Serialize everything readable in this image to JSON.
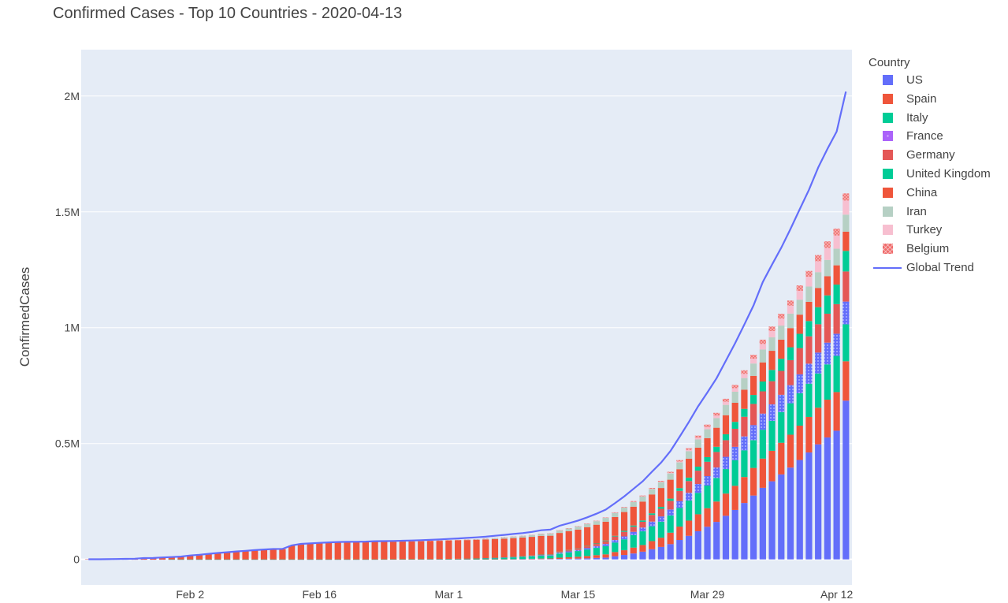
{
  "chart_data": {
    "type": "bar",
    "title": "Confirmed Cases - Top 10 Countries - 2020-04-13",
    "ylabel": "ConfirmedCases",
    "xlabel": "",
    "stacked": true,
    "grid": true,
    "legend_title": "Country",
    "legend_position": "right",
    "x_ticks": [
      "Feb 2",
      "Feb 16",
      "Mar 1",
      "Mar 15",
      "Mar 29",
      "Apr 12"
    ],
    "y_ticks": [
      "0",
      "0.5M",
      "1M",
      "1.5M",
      "2M"
    ],
    "ylim": [
      -110000,
      2200000
    ],
    "dates": [
      "Jan 22",
      "Jan 23",
      "Jan 24",
      "Jan 25",
      "Jan 26",
      "Jan 27",
      "Jan 28",
      "Jan 29",
      "Jan 30",
      "Jan 31",
      "Feb 1",
      "Feb 2",
      "Feb 3",
      "Feb 4",
      "Feb 5",
      "Feb 6",
      "Feb 7",
      "Feb 8",
      "Feb 9",
      "Feb 10",
      "Feb 11",
      "Feb 12",
      "Feb 13",
      "Feb 14",
      "Feb 15",
      "Feb 16",
      "Feb 17",
      "Feb 18",
      "Feb 19",
      "Feb 20",
      "Feb 21",
      "Feb 22",
      "Feb 23",
      "Feb 24",
      "Feb 25",
      "Feb 26",
      "Feb 27",
      "Feb 28",
      "Feb 29",
      "Mar 1",
      "Mar 2",
      "Mar 3",
      "Mar 4",
      "Mar 5",
      "Mar 6",
      "Mar 7",
      "Mar 8",
      "Mar 9",
      "Mar 10",
      "Mar 11",
      "Mar 12",
      "Mar 13",
      "Mar 14",
      "Mar 15",
      "Mar 16",
      "Mar 17",
      "Mar 18",
      "Mar 19",
      "Mar 20",
      "Mar 21",
      "Mar 22",
      "Mar 23",
      "Mar 24",
      "Mar 25",
      "Mar 26",
      "Mar 27",
      "Mar 28",
      "Mar 29",
      "Mar 30",
      "Mar 31",
      "Apr 1",
      "Apr 2",
      "Apr 3",
      "Apr 4",
      "Apr 5",
      "Apr 6",
      "Apr 7",
      "Apr 8",
      "Apr 9",
      "Apr 10",
      "Apr 11",
      "Apr 12",
      "Apr 13"
    ],
    "series": [
      {
        "name": "US",
        "color": "#636efa",
        "pattern": "solid",
        "values": [
          1,
          1,
          2,
          2,
          5,
          5,
          5,
          5,
          5,
          7,
          8,
          8,
          11,
          11,
          11,
          12,
          12,
          12,
          12,
          12,
          13,
          13,
          15,
          15,
          15,
          15,
          15,
          15,
          15,
          15,
          15,
          15,
          15,
          51,
          51,
          57,
          58,
          60,
          68,
          74,
          98,
          118,
          149,
          217,
          262,
          402,
          518,
          583,
          959,
          1281,
          1663,
          2179,
          2727,
          3499,
          4632,
          6421,
          7786,
          13680,
          19101,
          25493,
          33276,
          43847,
          53740,
          65778,
          83836,
          101657,
          121478,
          140886,
          161807,
          188172,
          213372,
          243453,
          275586,
          308850,
          337072,
          366667,
          396223,
          429052,
          461437,
          496535,
          526396,
          555313,
          685000
        ]
      },
      {
        "name": "Spain",
        "color": "#ef553b",
        "pattern": "solid",
        "values": [
          0,
          0,
          0,
          0,
          0,
          0,
          0,
          0,
          0,
          0,
          1,
          1,
          1,
          1,
          1,
          1,
          1,
          1,
          2,
          2,
          2,
          2,
          2,
          2,
          2,
          2,
          2,
          2,
          2,
          2,
          2,
          2,
          2,
          2,
          6,
          13,
          15,
          32,
          45,
          84,
          120,
          165,
          222,
          259,
          400,
          500,
          673,
          1073,
          1695,
          2277,
          2277,
          5232,
          6391,
          7798,
          9942,
          11748,
          13910,
          17963,
          20410,
          25374,
          28768,
          35136,
          39885,
          49515,
          57786,
          65719,
          73235,
          80110,
          87956,
          95923,
          104118,
          112065,
          119199,
          126168,
          131646,
          136675,
          141942,
          148220,
          153222,
          158273,
          163027,
          166831,
          170099
        ]
      },
      {
        "name": "Italy",
        "color": "#00cc96",
        "pattern": "solid",
        "values": [
          0,
          0,
          0,
          0,
          0,
          0,
          0,
          0,
          0,
          2,
          2,
          2,
          2,
          2,
          2,
          2,
          3,
          3,
          3,
          3,
          3,
          3,
          3,
          3,
          3,
          3,
          3,
          3,
          3,
          3,
          20,
          62,
          155,
          229,
          322,
          453,
          655,
          888,
          1128,
          1694,
          2036,
          2502,
          3089,
          3858,
          4636,
          5883,
          7375,
          9172,
          10149,
          12462,
          12462,
          17660,
          21157,
          24747,
          27980,
          31506,
          35713,
          41035,
          47021,
          53578,
          59138,
          63927,
          69176,
          74386,
          80589,
          86498,
          92472,
          97689,
          101739,
          105792,
          110574,
          115242,
          119827,
          124632,
          128948,
          132547,
          135586,
          139422,
          143626,
          147577,
          152271,
          156363,
          159516
        ]
      },
      {
        "name": "France",
        "color": "#ab63fa",
        "pattern": "dotted",
        "values": [
          0,
          0,
          2,
          3,
          3,
          3,
          4,
          5,
          5,
          5,
          6,
          6,
          6,
          6,
          6,
          6,
          6,
          11,
          11,
          11,
          11,
          11,
          11,
          11,
          12,
          12,
          12,
          12,
          12,
          12,
          12,
          12,
          12,
          12,
          14,
          18,
          38,
          57,
          100,
          130,
          191,
          204,
          288,
          380,
          656,
          957,
          1134,
          1217,
          1792,
          2293,
          2293,
          3681,
          4496,
          4532,
          6683,
          7715,
          9124,
          10970,
          12758,
          14463,
          16243,
          20123,
          22622,
          25600,
          29551,
          33402,
          38105,
          40708,
          45170,
          52827,
          57749,
          59929,
          65202,
          69500,
          71412,
          74390,
          78167,
          82048,
          86334,
          90276,
          93790,
          95403,
          98076
        ]
      },
      {
        "name": "Germany",
        "color": "#e45756",
        "pattern": "solid",
        "values": [
          0,
          0,
          0,
          0,
          0,
          1,
          4,
          4,
          4,
          5,
          8,
          10,
          12,
          12,
          12,
          12,
          13,
          13,
          14,
          14,
          16,
          16,
          16,
          16,
          16,
          16,
          16,
          16,
          16,
          16,
          16,
          16,
          16,
          16,
          17,
          27,
          46,
          48,
          79,
          130,
          159,
          196,
          262,
          482,
          670,
          799,
          1040,
          1176,
          1457,
          1908,
          2078,
          3675,
          4585,
          5795,
          7272,
          9257,
          12327,
          15320,
          19848,
          22213,
          24873,
          29056,
          32986,
          37323,
          43938,
          50871,
          57695,
          62095,
          66885,
          71808,
          77872,
          84794,
          91159,
          96092,
          100123,
          103374,
          107663,
          113296,
          118181,
          122171,
          124908,
          127854,
          130072
        ]
      },
      {
        "name": "United Kingdom",
        "color": "#00cc96",
        "pattern": "solid",
        "values": [
          0,
          0,
          0,
          0,
          0,
          0,
          0,
          0,
          0,
          2,
          2,
          2,
          2,
          2,
          2,
          2,
          3,
          3,
          3,
          8,
          8,
          9,
          9,
          9,
          9,
          9,
          9,
          9,
          9,
          9,
          9,
          9,
          9,
          9,
          13,
          13,
          15,
          20,
          23,
          36,
          40,
          51,
          86,
          116,
          164,
          207,
          274,
          322,
          384,
          459,
          459,
          802,
          1144,
          1145,
          1551,
          1960,
          2642,
          2716,
          4014,
          5067,
          5745,
          6726,
          8164,
          9640,
          11812,
          14745,
          17312,
          19780,
          22453,
          25481,
          29865,
          34173,
          38689,
          42477,
          48436,
          52279,
          55949,
          61474,
          65872,
          73758,
          78991,
          84279,
          88621
        ]
      },
      {
        "name": "China",
        "color": "#ef553b",
        "pattern": "solid",
        "values": [
          548,
          643,
          920,
          1406,
          2075,
          2877,
          5509,
          6087,
          8141,
          9802,
          11891,
          16630,
          19716,
          23707,
          27440,
          30587,
          34110,
          36814,
          39829,
          42354,
          44386,
          44759,
          59895,
          66358,
          68413,
          70513,
          72434,
          74211,
          74619,
          75077,
          75550,
          77001,
          77022,
          77241,
          77754,
          78166,
          78600,
          78928,
          79356,
          79932,
          80136,
          80261,
          80386,
          80537,
          80690,
          80770,
          80823,
          80860,
          80887,
          80921,
          80932,
          80945,
          80977,
          81003,
          81033,
          81058,
          81102,
          81156,
          81250,
          81305,
          81435,
          81498,
          81591,
          81661,
          81782,
          81897,
          81999,
          82122,
          82198,
          82279,
          82361,
          82432,
          82511,
          82543,
          82602,
          82665,
          82718,
          82809,
          82883,
          82941,
          83014,
          83134,
          83213
        ]
      },
      {
        "name": "Iran",
        "color": "#b6d0c4",
        "pattern": "solid",
        "values": [
          0,
          0,
          0,
          0,
          0,
          0,
          0,
          0,
          0,
          0,
          0,
          0,
          0,
          0,
          0,
          0,
          0,
          0,
          0,
          0,
          0,
          0,
          0,
          0,
          0,
          0,
          0,
          0,
          2,
          5,
          18,
          28,
          43,
          61,
          95,
          139,
          245,
          388,
          593,
          978,
          1501,
          2336,
          2922,
          3513,
          4747,
          5823,
          6566,
          7161,
          8042,
          9000,
          10075,
          11364,
          12729,
          13938,
          14991,
          16169,
          17361,
          18407,
          19644,
          20610,
          21638,
          23049,
          24811,
          27017,
          29406,
          32332,
          35408,
          38309,
          41495,
          44605,
          47593,
          50468,
          53183,
          55743,
          58226,
          60500,
          62589,
          64586,
          66220,
          68192,
          70029,
          71686,
          73303
        ]
      },
      {
        "name": "Turkey",
        "color": "#f7bfd0",
        "pattern": "solid",
        "values": [
          0,
          0,
          0,
          0,
          0,
          0,
          0,
          0,
          0,
          0,
          0,
          0,
          0,
          0,
          0,
          0,
          0,
          0,
          0,
          0,
          0,
          0,
          0,
          0,
          0,
          0,
          0,
          0,
          0,
          0,
          0,
          0,
          0,
          0,
          0,
          0,
          0,
          0,
          0,
          0,
          0,
          0,
          0,
          0,
          0,
          0,
          0,
          0,
          0,
          1,
          1,
          5,
          5,
          6,
          18,
          47,
          98,
          192,
          359,
          670,
          1236,
          1529,
          1872,
          2433,
          3629,
          5698,
          7402,
          9217,
          10827,
          13531,
          15679,
          18135,
          20921,
          23934,
          27069,
          30217,
          34109,
          38226,
          42282,
          47029,
          52167,
          56956,
          61049
        ]
      },
      {
        "name": "Belgium",
        "color": "#ef6b6b",
        "pattern": "cross",
        "values": [
          0,
          0,
          0,
          0,
          0,
          0,
          0,
          0,
          0,
          0,
          0,
          0,
          1,
          1,
          1,
          1,
          1,
          1,
          1,
          1,
          1,
          1,
          1,
          1,
          1,
          1,
          1,
          1,
          1,
          1,
          1,
          1,
          1,
          1,
          1,
          1,
          1,
          1,
          1,
          2,
          8,
          13,
          23,
          50,
          109,
          169,
          200,
          239,
          267,
          314,
          314,
          559,
          689,
          886,
          1058,
          1243,
          1486,
          1795,
          2257,
          2815,
          3401,
          3743,
          4269,
          4937,
          6235,
          7284,
          9134,
          10836,
          11899,
          12775,
          13964,
          15348,
          16770,
          18431,
          19691,
          20814,
          22194,
          23403,
          24983,
          26667,
          28018,
          29647,
          30589
        ]
      }
    ],
    "line": {
      "name": "Global Trend",
      "color": "#636efa",
      "values": [
        555,
        654,
        941,
        1434,
        2118,
        2927,
        5578,
        6166,
        8234,
        9927,
        12038,
        16787,
        19881,
        23892,
        27635,
        30794,
        34391,
        37120,
        40150,
        42762,
        44802,
        45221,
        60368,
        66885,
        69030,
        71224,
        73258,
        75136,
        75639,
        76197,
        76819,
        78572,
        78958,
        79561,
        80406,
        81388,
        82746,
        84112,
        86011,
        88369,
        90306,
        92840,
        95120,
        97886,
        101801,
        105847,
        109821,
        113590,
        118620,
        125875,
        128352,
        145205,
        156101,
        167454,
        181574,
        197102,
        214821,
        242570,
        272208,
        304507,
        336953,
        378235,
        418045,
        467653,
        529591,
        593291,
        660706,
        720117,
        782365,
        857487,
        932605,
        1013466,
        1095917,
        1197405,
        1272115,
        1345101,
        1426096,
        1511104,
        1595350,
        1691719,
        1771514,
        1846680,
        2019000
      ]
    }
  }
}
